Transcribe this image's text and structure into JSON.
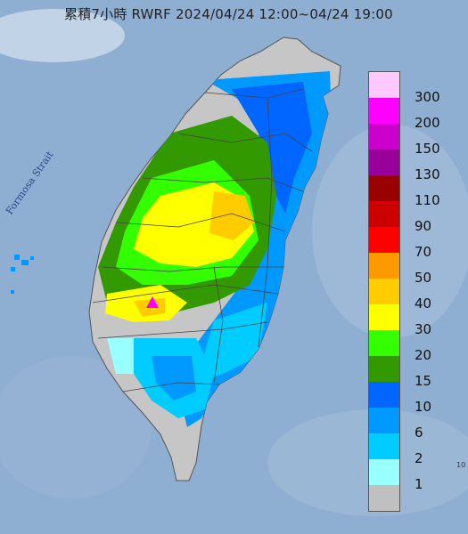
{
  "map": {
    "title": "累積7小時 RWRF 2024/04/24 12:00~04/24 19:00",
    "strait_label": "Formosa Strait",
    "corner_label": "10",
    "marker_icon": "triangle-marker-icon",
    "colors": {
      "sea": "#8eaed2",
      "land": "#c6c6c6",
      "marker": "#ff00ff"
    }
  },
  "legend": {
    "levels": [
      {
        "label": "300",
        "color": "#ffc8ff"
      },
      {
        "label": "200",
        "color": "#ff00ff"
      },
      {
        "label": "150",
        "color": "#cc00cc"
      },
      {
        "label": "130",
        "color": "#99009a"
      },
      {
        "label": "110",
        "color": "#990000"
      },
      {
        "label": "90",
        "color": "#cc0000"
      },
      {
        "label": "70",
        "color": "#ff0000"
      },
      {
        "label": "50",
        "color": "#ff9900"
      },
      {
        "label": "40",
        "color": "#ffcc00"
      },
      {
        "label": "30",
        "color": "#ffff00"
      },
      {
        "label": "20",
        "color": "#33ff00"
      },
      {
        "label": "15",
        "color": "#339900"
      },
      {
        "label": "10",
        "color": "#0066ff"
      },
      {
        "label": "6",
        "color": "#0099ff"
      },
      {
        "label": "2",
        "color": "#00ccff"
      },
      {
        "label": "1",
        "color": "#99ffff"
      },
      {
        "label": "",
        "color": "#c0c0c0"
      }
    ]
  }
}
